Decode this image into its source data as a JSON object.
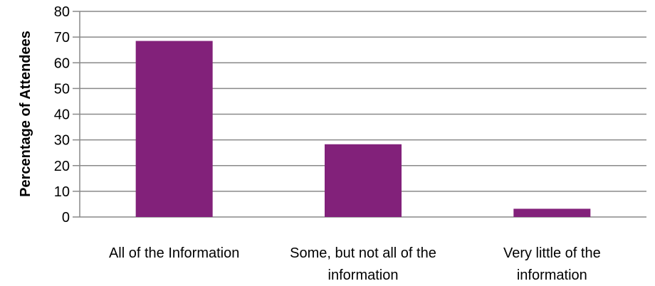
{
  "chart_data": {
    "type": "bar",
    "categories": [
      [
        "All of the Information"
      ],
      [
        "Some, but not all of the",
        "information"
      ],
      [
        "Very little of the",
        "information"
      ]
    ],
    "values": [
      68.5,
      28.3,
      3.2
    ],
    "ylabel": "Percentage of Attendees",
    "xlabel": "",
    "title": "",
    "ylim": [
      0,
      80
    ],
    "yticks": [
      0,
      10,
      20,
      30,
      40,
      50,
      60,
      70,
      80
    ],
    "grid": true,
    "bar_color": "#82217a",
    "grid_color": "#898989"
  }
}
